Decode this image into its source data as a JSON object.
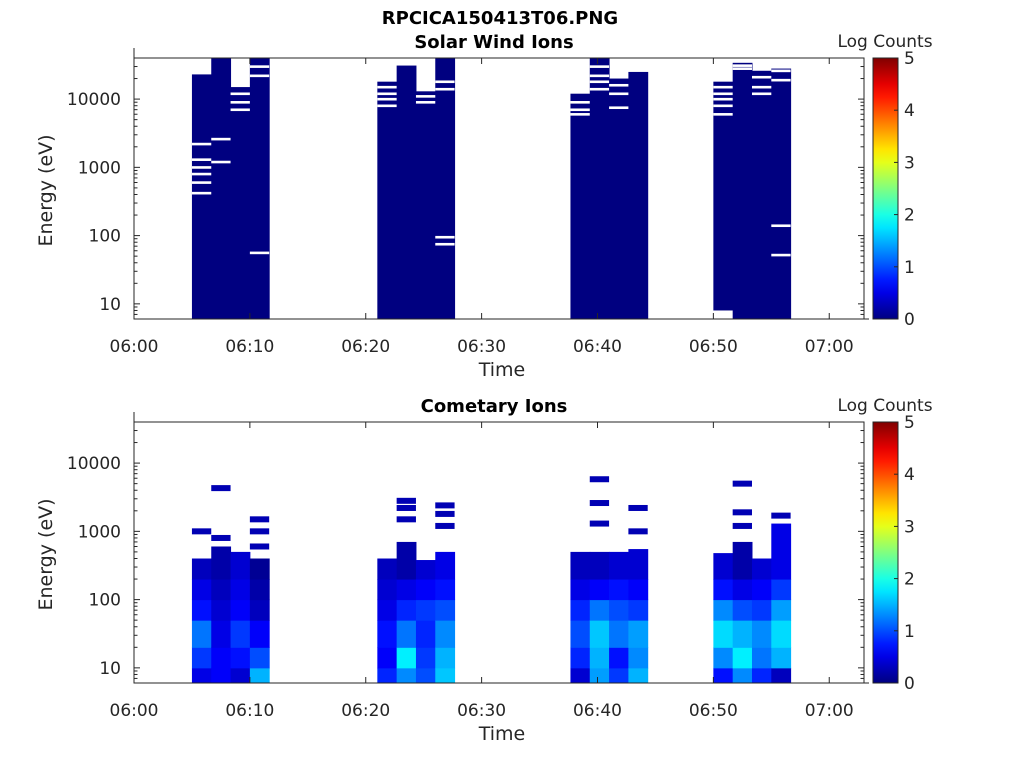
{
  "figure": {
    "title": "RPCICA150413T06.PNG"
  },
  "chart_data": [
    {
      "type": "heatmap",
      "title": "Solar Wind Ions",
      "xlabel": "Time",
      "ylabel": "Energy (eV)",
      "x_ticks": [
        "06:00",
        "06:10",
        "06:20",
        "06:30",
        "06:40",
        "06:50",
        "07:00"
      ],
      "xlim": [
        "06:00",
        "07:03"
      ],
      "y_scale": "log",
      "y_ticks": [
        "10",
        "100",
        "1000",
        "10000"
      ],
      "ylim": [
        6,
        40000
      ],
      "colorbar": {
        "label": "Log Counts",
        "ticks": [
          "0",
          "1",
          "2",
          "3",
          "4",
          "5"
        ],
        "range": [
          0,
          5
        ],
        "colormap": "jet"
      },
      "value": 0,
      "gaps": [
        {
          "t0": "06:05",
          "t1": "06:06:40",
          "e": [
            420,
            2200,
            1300,
            1000,
            800,
            600
          ]
        },
        {
          "t0": "06:06:40",
          "t1": "06:08:20",
          "e": [
            2600,
            1200
          ]
        },
        {
          "t0": "06:08:20",
          "t1": "06:10",
          "e": [
            12000,
            9000,
            7000
          ]
        },
        {
          "t0": "06:10",
          "t1": "06:11:40",
          "e": [
            30000,
            22000,
            56
          ]
        },
        {
          "t0": "06:21",
          "t1": "06:22:40",
          "e": [
            15000,
            12000,
            10000,
            8000
          ]
        },
        {
          "t0": "06:24:20",
          "t1": "06:26",
          "e": [
            11000,
            9000
          ]
        },
        {
          "t0": "06:26",
          "t1": "06:27:40",
          "e": [
            18000,
            14000,
            95,
            75
          ]
        },
        {
          "t0": "06:37:40",
          "t1": "06:39:20",
          "e": [
            9000,
            7000,
            6000
          ]
        },
        {
          "t0": "06:39:20",
          "t1": "06:41",
          "e": [
            30000,
            22000,
            18000,
            14000
          ]
        },
        {
          "t0": "06:41",
          "t1": "06:42:40",
          "e": [
            16000,
            12000,
            7500
          ]
        },
        {
          "t0": "06:50",
          "t1": "06:51:40",
          "e": [
            15000,
            12000,
            10000,
            8000,
            6000
          ]
        },
        {
          "t0": "06:51:40",
          "t1": "06:53:20",
          "e": [
            31000,
            28000
          ]
        },
        {
          "t0": "06:53:20",
          "t1": "06:55",
          "e": [
            21000,
            15000,
            12000
          ]
        },
        {
          "t0": "06:55",
          "t1": "06:56:40",
          "e": [
            26000,
            19000,
            140,
            52
          ]
        }
      ],
      "blocks": [
        {
          "t0": "06:05",
          "t1": "06:06:40",
          "e_min": 6,
          "e_max": 23000
        },
        {
          "t0": "06:06:40",
          "t1": "06:08:20",
          "e_min": 6,
          "e_max": 40000
        },
        {
          "t0": "06:08:20",
          "t1": "06:10",
          "e_min": 6,
          "e_max": 15000
        },
        {
          "t0": "06:10",
          "t1": "06:11:40",
          "e_min": 6,
          "e_max": 40000
        },
        {
          "t0": "06:21",
          "t1": "06:22:40",
          "e_min": 6,
          "e_max": 18000
        },
        {
          "t0": "06:22:40",
          "t1": "06:24:20",
          "e_min": 6,
          "e_max": 31000
        },
        {
          "t0": "06:24:20",
          "t1": "06:26",
          "e_min": 6,
          "e_max": 13000
        },
        {
          "t0": "06:26",
          "t1": "06:27:40",
          "e_min": 6,
          "e_max": 40000
        },
        {
          "t0": "06:37:40",
          "t1": "06:39:20",
          "e_min": 6,
          "e_max": 12000
        },
        {
          "t0": "06:39:20",
          "t1": "06:41",
          "e_min": 6,
          "e_max": 40000
        },
        {
          "t0": "06:41",
          "t1": "06:42:40",
          "e_min": 6,
          "e_max": 20000
        },
        {
          "t0": "06:42:40",
          "t1": "06:44:20",
          "e_min": 6,
          "e_max": 25000
        },
        {
          "t0": "06:50",
          "t1": "06:51:40",
          "e_min": 8,
          "e_max": 18000
        },
        {
          "t0": "06:51:40",
          "t1": "06:53:20",
          "e_min": 6,
          "e_max": 34000
        },
        {
          "t0": "06:53:20",
          "t1": "06:55",
          "e_min": 6,
          "e_max": 26000
        },
        {
          "t0": "06:55",
          "t1": "06:56:40",
          "e_min": 6,
          "e_max": 28000
        }
      ]
    },
    {
      "type": "heatmap",
      "title": "Cometary Ions",
      "xlabel": "Time",
      "ylabel": "Energy (eV)",
      "x_ticks": [
        "06:00",
        "06:10",
        "06:20",
        "06:30",
        "06:40",
        "06:50",
        "07:00"
      ],
      "xlim": [
        "06:00",
        "07:03"
      ],
      "y_scale": "log",
      "y_ticks": [
        "10",
        "100",
        "1000",
        "10000"
      ],
      "ylim": [
        6,
        40000
      ],
      "colorbar": {
        "label": "Log Counts",
        "ticks": [
          "0",
          "1",
          "2",
          "3",
          "4",
          "5"
        ],
        "range": [
          0,
          5
        ],
        "colormap": "jet"
      },
      "energy_bins": [
        6,
        10,
        20,
        50,
        100,
        200,
        450
      ],
      "columns": [
        {
          "t0": "06:05",
          "t1": "06:06:40",
          "values": [
            0.5,
            0.9,
            1.2,
            0.7,
            0.5,
            0.3
          ],
          "top": 400,
          "spots": [
            1000
          ]
        },
        {
          "t0": "06:06:40",
          "t1": "06:08:20",
          "values": [
            0.6,
            0.6,
            0.5,
            0.4,
            0.3,
            0.2
          ],
          "top": 600,
          "spots": [
            800,
            4300
          ]
        },
        {
          "t0": "06:08:20",
          "t1": "06:10",
          "values": [
            0.4,
            0.7,
            0.9,
            0.6,
            0.5,
            0.4
          ],
          "top": 500,
          "spots": []
        },
        {
          "t0": "06:10",
          "t1": "06:11:40",
          "values": [
            1.5,
            1.0,
            0.6,
            0.3,
            0.2,
            0.1
          ],
          "top": 400,
          "spots": [
            600,
            1000,
            1500
          ]
        },
        {
          "t0": "06:21",
          "t1": "06:22:40",
          "values": [
            0.8,
            0.6,
            0.7,
            0.5,
            0.4,
            0.3
          ],
          "top": 400,
          "spots": []
        },
        {
          "t0": "06:22:40",
          "t1": "06:24:20",
          "values": [
            1.3,
            1.8,
            1.2,
            0.8,
            0.5,
            0.2
          ],
          "top": 700,
          "spots": [
            1500,
            2200,
            2800
          ]
        },
        {
          "t0": "06:24:20",
          "t1": "06:26",
          "values": [
            1.0,
            0.9,
            0.8,
            0.9,
            0.6,
            0.4
          ],
          "top": 380,
          "spots": []
        },
        {
          "t0": "06:26",
          "t1": "06:27:40",
          "values": [
            1.6,
            1.5,
            1.3,
            1.0,
            0.7,
            0.5
          ],
          "top": 500,
          "spots": [
            1200,
            1800,
            2400
          ]
        },
        {
          "t0": "06:37:40",
          "t1": "06:39:20",
          "values": [
            0.4,
            0.8,
            1.0,
            0.8,
            0.5,
            0.3
          ],
          "top": 500,
          "spots": []
        },
        {
          "t0": "06:39:20",
          "t1": "06:41",
          "values": [
            1.4,
            1.5,
            1.6,
            1.2,
            0.6,
            0.3
          ],
          "top": 500,
          "spots": [
            1300,
            2600,
            5800
          ]
        },
        {
          "t0": "06:41",
          "t1": "06:42:40",
          "values": [
            0.9,
            0.7,
            1.2,
            1.0,
            0.7,
            0.4
          ],
          "top": 500,
          "spots": []
        },
        {
          "t0": "06:42:40",
          "t1": "06:44:20",
          "values": [
            1.5,
            1.3,
            1.4,
            0.9,
            0.6,
            0.4
          ],
          "top": 550,
          "spots": [
            1000,
            2200
          ]
        },
        {
          "t0": "06:50",
          "t1": "06:51:40",
          "values": [
            0.7,
            1.3,
            1.7,
            1.3,
            0.7,
            0.4
          ],
          "top": 480,
          "spots": []
        },
        {
          "t0": "06:51:40",
          "t1": "06:53:20",
          "values": [
            1.3,
            1.8,
            1.5,
            1.0,
            0.5,
            0.2
          ],
          "top": 700,
          "spots": [
            1200,
            1900,
            5000
          ]
        },
        {
          "t0": "06:53:20",
          "t1": "06:55",
          "values": [
            0.8,
            1.2,
            1.3,
            0.9,
            0.6,
            0.4
          ],
          "top": 400,
          "spots": []
        },
        {
          "t0": "06:55",
          "t1": "06:56:40",
          "values": [
            0.3,
            1.5,
            1.7,
            1.4,
            0.9,
            0.5
          ],
          "top": 1300,
          "spots": [
            1700
          ]
        }
      ]
    }
  ]
}
